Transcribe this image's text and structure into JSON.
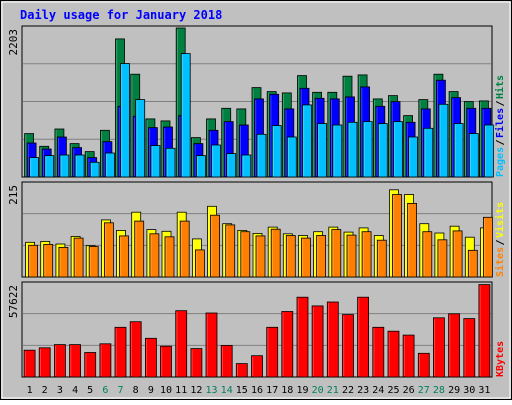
{
  "title": "Daily usage for January 2018",
  "colors": {
    "background": "#c0c0c0",
    "border": "#000000",
    "title_text": "#0000ff",
    "hits": "#008040",
    "files": "#0000ff",
    "pages": "#00c0ff",
    "visits": "#ffff00",
    "sites": "#ff8000",
    "kbytes": "#ff0000",
    "weekend_label": "#00805c",
    "weekday_label": "#000000"
  },
  "chart_data": [
    {
      "type": "bar",
      "panel": "requests",
      "ymax_label": "2203",
      "ylim": [
        0,
        2203
      ],
      "grid": true,
      "x": [
        1,
        2,
        3,
        4,
        5,
        6,
        7,
        8,
        9,
        10,
        11,
        12,
        13,
        14,
        15,
        16,
        17,
        18,
        19,
        20,
        21,
        22,
        23,
        24,
        25,
        26,
        27,
        28,
        29,
        30,
        31
      ],
      "weekend_days": [
        6,
        7,
        13,
        14,
        20,
        21,
        27,
        28
      ],
      "series": [
        {
          "name": "Hits",
          "color": "#008040",
          "values": [
            650,
            460,
            720,
            500,
            380,
            700,
            2070,
            1540,
            870,
            840,
            2280,
            590,
            870,
            1030,
            1020,
            1340,
            1280,
            1260,
            1520,
            1270,
            1270,
            1510,
            1530,
            1170,
            1220,
            920,
            1160,
            1540,
            1280,
            1130,
            1140
          ]
        },
        {
          "name": "Files",
          "color": "#0000ff",
          "values": [
            510,
            420,
            600,
            440,
            290,
            530,
            1060,
            910,
            740,
            750,
            920,
            500,
            700,
            830,
            780,
            1170,
            1240,
            1020,
            1330,
            1180,
            1170,
            1200,
            1350,
            1060,
            1130,
            820,
            1020,
            1450,
            1190,
            1030,
            1030
          ]
        },
        {
          "name": "Pages",
          "color": "#00c0ff",
          "values": [
            290,
            320,
            330,
            330,
            220,
            360,
            1700,
            1160,
            470,
            430,
            1850,
            320,
            480,
            350,
            330,
            640,
            770,
            600,
            1080,
            800,
            780,
            820,
            830,
            800,
            830,
            600,
            730,
            1090,
            800,
            650,
            780
          ]
        }
      ],
      "legend": [
        "Pages",
        "Files",
        "Hits"
      ]
    },
    {
      "type": "bar",
      "panel": "visitors",
      "ymax_label": "215",
      "ylim": [
        0,
        215
      ],
      "grid": true,
      "x": [
        1,
        2,
        3,
        4,
        5,
        6,
        7,
        8,
        9,
        10,
        11,
        12,
        13,
        14,
        15,
        16,
        17,
        18,
        19,
        20,
        21,
        22,
        23,
        24,
        25,
        26,
        27,
        28,
        29,
        30,
        31
      ],
      "series": [
        {
          "name": "Visits",
          "color": "#ffff00",
          "values": [
            82,
            84,
            78,
            96,
            74,
            135,
            110,
            153,
            112,
            108,
            153,
            90,
            167,
            126,
            110,
            103,
            118,
            102,
            98,
            107,
            118,
            106,
            116,
            98,
            206,
            195,
            126,
            104,
            120,
            94,
            116
          ]
        },
        {
          "name": "Sites",
          "color": "#ff8000",
          "values": [
            75,
            77,
            70,
            92,
            72,
            128,
            97,
            132,
            102,
            95,
            132,
            64,
            146,
            123,
            107,
            97,
            113,
            98,
            92,
            98,
            112,
            99,
            107,
            87,
            195,
            174,
            107,
            88,
            109,
            63,
            141
          ]
        }
      ],
      "legend": [
        "Sites",
        "Visits"
      ]
    },
    {
      "type": "bar",
      "panel": "kbytes",
      "ymax_label": "57622",
      "ylim": [
        0,
        57622
      ],
      "grid": true,
      "x": [
        1,
        2,
        3,
        4,
        5,
        6,
        7,
        8,
        9,
        10,
        11,
        12,
        13,
        14,
        15,
        16,
        17,
        18,
        19,
        20,
        21,
        22,
        23,
        24,
        25,
        26,
        27,
        28,
        29,
        30,
        31
      ],
      "series": [
        {
          "name": "KBytes",
          "color": "#ff0000",
          "values": [
            17000,
            18500,
            20500,
            20500,
            15500,
            21000,
            31500,
            35000,
            24500,
            19500,
            42000,
            18000,
            40500,
            20000,
            8500,
            13500,
            31500,
            41500,
            50500,
            45000,
            47500,
            39500,
            50500,
            31500,
            29000,
            26500,
            15000,
            37500,
            40000,
            37000,
            58500
          ]
        }
      ],
      "legend": [
        "KBytes"
      ]
    }
  ]
}
